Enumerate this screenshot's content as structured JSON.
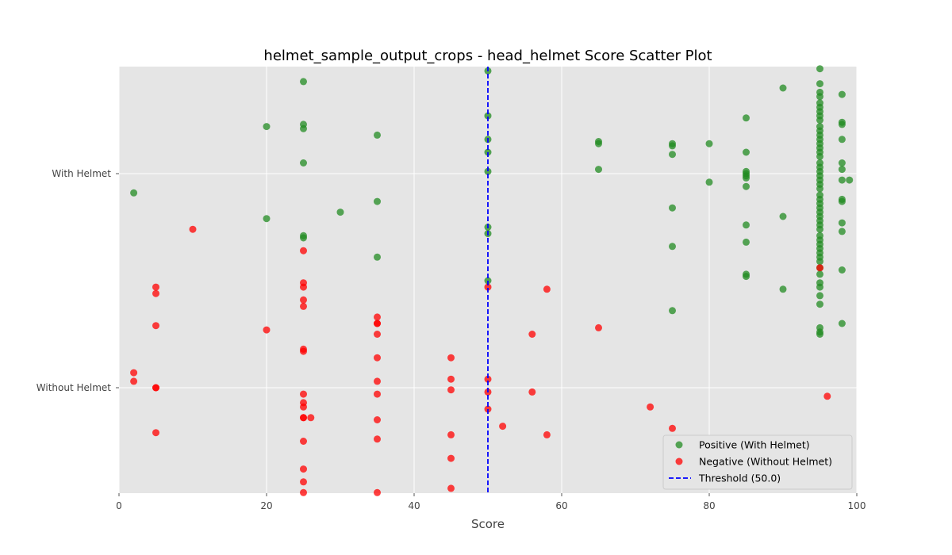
{
  "chart_data": {
    "type": "scatter",
    "title": "helmet_sample_output_crops - head_helmet Score Scatter Plot",
    "xlabel": "Score",
    "ylabel": "",
    "xlim": [
      0,
      100
    ],
    "x_ticks": [
      "0",
      "20",
      "40",
      "60",
      "80",
      "100"
    ],
    "y_ticks": [
      {
        "label": "With Helmet",
        "value": 1
      },
      {
        "label": "Without Helmet",
        "value": 0
      }
    ],
    "grid": true,
    "legend_position": "bottom-right",
    "threshold": {
      "value": 50.0,
      "label": "Threshold (50.0)",
      "color": "#0000ff",
      "style": "dashed"
    },
    "series": [
      {
        "name": "Positive (With Helmet)",
        "color": "#228b22",
        "points": [
          [
            2,
            0.91
          ],
          [
            20,
            0.79
          ],
          [
            20,
            1.22
          ],
          [
            25,
            1.43
          ],
          [
            25,
            1.05
          ],
          [
            25,
            1.23
          ],
          [
            25,
            1.21
          ],
          [
            25,
            0.71
          ],
          [
            25,
            0.7
          ],
          [
            30,
            0.82
          ],
          [
            35,
            1.18
          ],
          [
            35,
            0.87
          ],
          [
            35,
            0.61
          ],
          [
            50,
            1.48
          ],
          [
            50,
            1.27
          ],
          [
            50,
            1.16
          ],
          [
            50,
            1.1
          ],
          [
            50,
            1.01
          ],
          [
            50,
            0.75
          ],
          [
            50,
            0.72
          ],
          [
            50,
            0.5
          ],
          [
            65,
            1.14
          ],
          [
            65,
            1.15
          ],
          [
            65,
            1.02
          ],
          [
            75,
            1.14
          ],
          [
            75,
            1.13
          ],
          [
            75,
            1.09
          ],
          [
            75,
            0.84
          ],
          [
            75,
            0.66
          ],
          [
            75,
            0.36
          ],
          [
            80,
            1.14
          ],
          [
            80,
            0.96
          ],
          [
            85,
            1.26
          ],
          [
            85,
            1.1
          ],
          [
            85,
            1.01
          ],
          [
            85,
            1.0
          ],
          [
            85,
            0.99
          ],
          [
            85,
            0.98
          ],
          [
            85,
            0.94
          ],
          [
            85,
            0.76
          ],
          [
            85,
            0.68
          ],
          [
            85,
            0.52
          ],
          [
            85,
            0.53
          ],
          [
            90,
            1.4
          ],
          [
            90,
            0.8
          ],
          [
            90,
            0.46
          ],
          [
            95,
            1.49
          ],
          [
            95,
            1.42
          ],
          [
            95,
            1.38
          ],
          [
            95,
            1.36
          ],
          [
            95,
            1.33
          ],
          [
            95,
            1.31
          ],
          [
            95,
            1.29
          ],
          [
            95,
            1.27
          ],
          [
            95,
            1.25
          ],
          [
            95,
            1.22
          ],
          [
            95,
            1.2
          ],
          [
            95,
            1.18
          ],
          [
            95,
            1.16
          ],
          [
            95,
            1.14
          ],
          [
            95,
            1.12
          ],
          [
            95,
            1.1
          ],
          [
            95,
            1.08
          ],
          [
            95,
            1.05
          ],
          [
            95,
            1.03
          ],
          [
            95,
            1.01
          ],
          [
            95,
            0.99
          ],
          [
            95,
            0.97
          ],
          [
            95,
            0.95
          ],
          [
            95,
            0.93
          ],
          [
            95,
            0.9
          ],
          [
            95,
            0.88
          ],
          [
            95,
            0.86
          ],
          [
            95,
            0.84
          ],
          [
            95,
            0.82
          ],
          [
            95,
            0.8
          ],
          [
            95,
            0.78
          ],
          [
            95,
            0.76
          ],
          [
            95,
            0.74
          ],
          [
            95,
            0.71
          ],
          [
            95,
            0.69
          ],
          [
            95,
            0.67
          ],
          [
            95,
            0.65
          ],
          [
            95,
            0.63
          ],
          [
            95,
            0.61
          ],
          [
            95,
            0.59
          ],
          [
            95,
            0.56
          ],
          [
            95,
            0.53
          ],
          [
            95,
            0.49
          ],
          [
            95,
            0.47
          ],
          [
            95,
            0.43
          ],
          [
            95,
            0.39
          ],
          [
            95,
            0.28
          ],
          [
            95,
            0.26
          ],
          [
            95,
            0.25
          ],
          [
            98,
            1.37
          ],
          [
            98,
            1.24
          ],
          [
            98,
            1.23
          ],
          [
            98,
            1.16
          ],
          [
            98,
            1.05
          ],
          [
            98,
            1.02
          ],
          [
            98,
            0.97
          ],
          [
            98,
            0.88
          ],
          [
            98,
            0.87
          ],
          [
            98,
            0.77
          ],
          [
            98,
            0.73
          ],
          [
            98,
            0.55
          ],
          [
            98,
            0.3
          ],
          [
            99,
            0.97
          ]
        ]
      },
      {
        "name": "Negative (Without Helmet)",
        "color": "#ff0000",
        "points": [
          [
            2,
            0.07
          ],
          [
            2,
            0.03
          ],
          [
            5,
            0.47
          ],
          [
            5,
            0.44
          ],
          [
            5,
            0.29
          ],
          [
            5,
            0.0
          ],
          [
            5,
            0.0
          ],
          [
            5,
            -0.21
          ],
          [
            10,
            0.74
          ],
          [
            20,
            0.27
          ],
          [
            25,
            0.64
          ],
          [
            25,
            0.49
          ],
          [
            25,
            0.47
          ],
          [
            25,
            0.41
          ],
          [
            25,
            0.38
          ],
          [
            25,
            0.18
          ],
          [
            25,
            0.17
          ],
          [
            25,
            -0.03
          ],
          [
            25,
            -0.07
          ],
          [
            25,
            -0.09
          ],
          [
            25,
            -0.14
          ],
          [
            25,
            -0.14
          ],
          [
            25,
            -0.25
          ],
          [
            25,
            -0.38
          ],
          [
            25,
            -0.44
          ],
          [
            25,
            -0.49
          ],
          [
            26,
            -0.14
          ],
          [
            35,
            0.33
          ],
          [
            35,
            0.3
          ],
          [
            35,
            0.3
          ],
          [
            35,
            0.25
          ],
          [
            35,
            0.14
          ],
          [
            35,
            0.03
          ],
          [
            35,
            -0.03
          ],
          [
            35,
            -0.15
          ],
          [
            35,
            -0.24
          ],
          [
            35,
            -0.49
          ],
          [
            45,
            0.14
          ],
          [
            45,
            0.04
          ],
          [
            45,
            -0.01
          ],
          [
            45,
            -0.22
          ],
          [
            45,
            -0.33
          ],
          [
            45,
            -0.47
          ],
          [
            50,
            0.47
          ],
          [
            50,
            0.04
          ],
          [
            50,
            -0.02
          ],
          [
            50,
            -0.1
          ],
          [
            52,
            -0.18
          ],
          [
            56,
            0.25
          ],
          [
            56,
            -0.02
          ],
          [
            58,
            0.46
          ],
          [
            58,
            -0.22
          ],
          [
            65,
            0.28
          ],
          [
            72,
            -0.09
          ],
          [
            75,
            -0.19
          ],
          [
            95,
            0.56
          ],
          [
            96,
            -0.04
          ]
        ]
      }
    ]
  }
}
